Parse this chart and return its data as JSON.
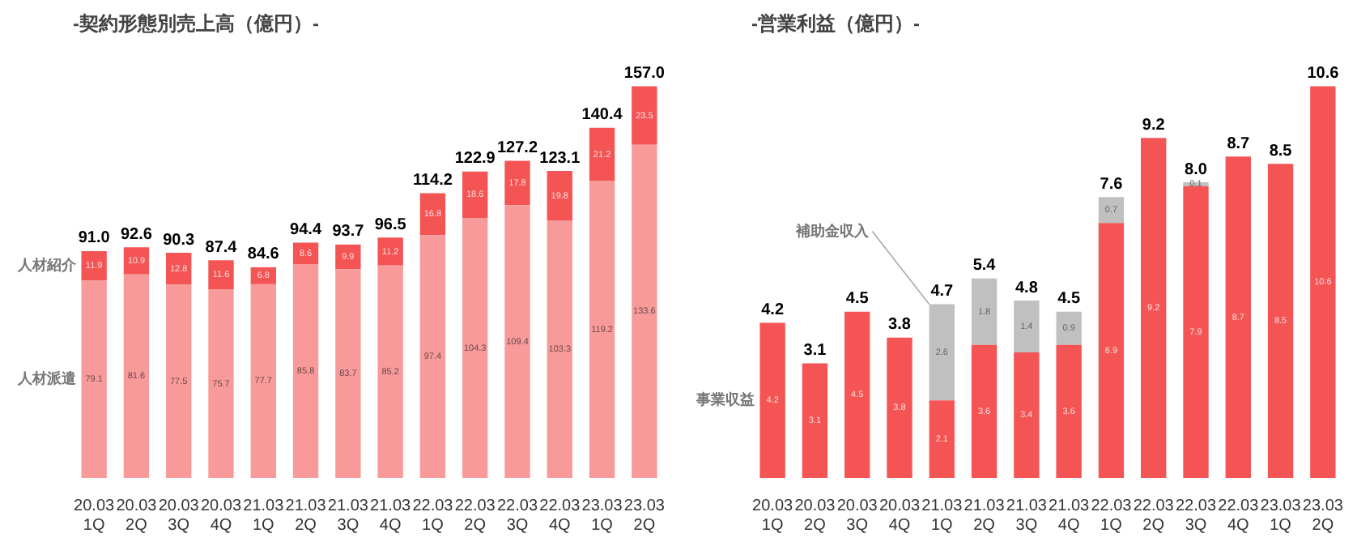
{
  "chart_data": [
    {
      "type": "bar",
      "title": "-契約形態別売上高（億円）-",
      "stacked": true,
      "data_labels": true,
      "tick_labels": "x",
      "categories": [
        "20.03 1Q",
        "20.03 2Q",
        "20.03 3Q",
        "20.03 4Q",
        "21.03 1Q",
        "21.03 2Q",
        "21.03 3Q",
        "21.03 4Q",
        "22.03 1Q",
        "22.03 2Q",
        "22.03 3Q",
        "22.03 4Q",
        "23.03 1Q",
        "23.03 2Q"
      ],
      "series": [
        {
          "name": "人材派遣",
          "color": "#f99a9a",
          "values": [
            79.1,
            81.6,
            77.5,
            75.7,
            77.7,
            85.8,
            83.7,
            85.2,
            97.4,
            104.3,
            109.4,
            103.3,
            119.2,
            133.6
          ]
        },
        {
          "name": "人材紹介",
          "color": "#f45454",
          "values": [
            11.9,
            10.9,
            12.8,
            11.6,
            6.8,
            8.6,
            9.9,
            11.2,
            16.8,
            18.6,
            17.8,
            19.8,
            21.2,
            23.5
          ]
        }
      ],
      "totals": [
        "91.0",
        "92.6",
        "90.3",
        "87.4",
        "84.6",
        "94.4",
        "93.7",
        "96.5",
        "114.2",
        "122.9",
        "127.2",
        "123.1",
        "140.4",
        "157.0"
      ]
    },
    {
      "type": "bar",
      "title": "-営業利益（億円）-",
      "stacked": true,
      "data_labels": true,
      "tick_labels": "x",
      "categories": [
        "20.03 1Q",
        "20.03 2Q",
        "20.03 3Q",
        "20.03 4Q",
        "21.03 1Q",
        "21.03 2Q",
        "21.03 3Q",
        "21.03 4Q",
        "22.03 1Q",
        "22.03 2Q",
        "22.03 3Q",
        "22.03 4Q",
        "23.03 1Q",
        "23.03 2Q"
      ],
      "series": [
        {
          "name": "事業収益",
          "color": "#f45454",
          "values": [
            4.2,
            3.1,
            4.5,
            3.8,
            2.1,
            3.6,
            3.4,
            3.6,
            6.9,
            9.2,
            7.9,
            8.7,
            8.5,
            10.6
          ]
        },
        {
          "name": "補助金収入",
          "color": "#c0c0c0",
          "values": [
            null,
            null,
            null,
            null,
            2.6,
            1.8,
            1.4,
            0.9,
            0.7,
            null,
            0.1,
            null,
            null,
            null
          ]
        }
      ],
      "totals": [
        "4.2",
        "3.1",
        "4.5",
        "3.8",
        "4.7",
        "5.4",
        "4.8",
        "4.5",
        "7.6",
        "9.2",
        "8.0",
        "8.7",
        "8.5",
        "10.6"
      ]
    }
  ]
}
